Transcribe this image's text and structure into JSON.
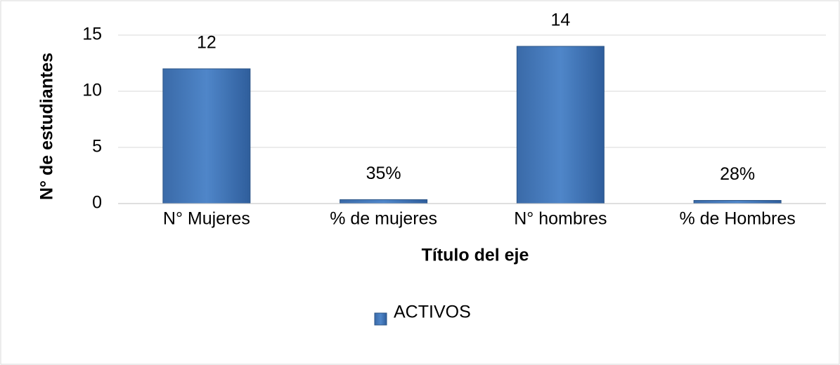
{
  "chart_data": {
    "type": "bar",
    "x_label": "Título del eje",
    "y_label": "N° de estudiantes",
    "categories": [
      "N° Mujeres",
      "% de mujeres",
      "N° hombres",
      "% de Hombres"
    ],
    "series": [
      {
        "name": "ACTIVOS",
        "color": "#4a7ebb",
        "values": [
          12,
          0.35,
          14,
          0.28
        ],
        "value_labels": [
          "12",
          "35%",
          "14",
          "28%"
        ]
      }
    ],
    "ylim": [
      0,
      15
    ],
    "yticks": [
      0,
      5,
      10,
      15
    ],
    "grid": true,
    "legend": "bottom"
  }
}
